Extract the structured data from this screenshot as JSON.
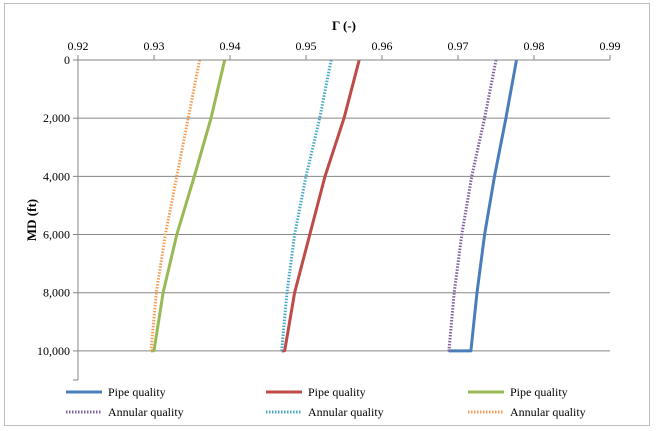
{
  "chart_data": {
    "type": "line",
    "xlabel": "Γ (-)",
    "ylabel": "MD (ft)",
    "xlim": [
      0.92,
      0.99
    ],
    "ylim": [
      0,
      11000
    ],
    "y_inverted": true,
    "x_axis_position": "top",
    "grid": "horizontal",
    "legend_position": "bottom",
    "x_ticks": [
      0.92,
      0.93,
      0.94,
      0.95,
      0.96,
      0.97,
      0.98,
      0.99
    ],
    "y_ticks": [
      0,
      2000,
      4000,
      6000,
      8000,
      10000
    ],
    "x_tick_labels": [
      "0.92",
      "0.93",
      "0.94",
      "0.95",
      "0.96",
      "0.97",
      "0.98",
      "0.99"
    ],
    "y_tick_labels": [
      "0",
      "2,000",
      "4,000",
      "6,000",
      "8,000",
      "10,000"
    ],
    "series": [
      {
        "name": "Pipe quality",
        "color": "#4a7ebb",
        "style": "solid",
        "x": [
          0.9777,
          0.9763,
          0.9748,
          0.9735,
          0.9725,
          0.9717,
          0.9717,
          0.9688
        ],
        "y": [
          0,
          2000,
          4000,
          6000,
          8000,
          9990,
          10000,
          10000
        ]
      },
      {
        "name": "Pipe quality",
        "color": "#be4b48",
        "style": "solid",
        "x": [
          0.957,
          0.955,
          0.9525,
          0.9505,
          0.9485,
          0.9472,
          0.947,
          0.9468
        ],
        "y": [
          0,
          2000,
          4000,
          6000,
          8000,
          9990,
          10000,
          10000
        ]
      },
      {
        "name": "Pipe quality",
        "color": "#98b954",
        "style": "solid",
        "x": [
          0.9393,
          0.9375,
          0.9353,
          0.933,
          0.9312,
          0.93,
          0.9297,
          0.9296
        ],
        "y": [
          0,
          2000,
          4000,
          6000,
          8000,
          9990,
          10000,
          10000
        ]
      },
      {
        "name": "Annular quality",
        "color": "#7d60a0",
        "style": "dotted",
        "x": [
          0.975,
          0.9735,
          0.9718,
          0.9705,
          0.9695,
          0.9688,
          0.9687
        ],
        "y": [
          0,
          2000,
          4000,
          6000,
          8000,
          9990,
          10000
        ]
      },
      {
        "name": "Annular quality",
        "color": "#46aac5",
        "style": "dotted",
        "x": [
          0.9533,
          0.9518,
          0.95,
          0.9485,
          0.9475,
          0.9468,
          0.9468
        ],
        "y": [
          0,
          2000,
          4000,
          6000,
          8000,
          9990,
          10000
        ]
      },
      {
        "name": "Annular quality",
        "color": "#f59d56",
        "style": "dotted",
        "x": [
          0.936,
          0.9345,
          0.933,
          0.9315,
          0.9303,
          0.9296,
          0.9296
        ],
        "y": [
          0,
          2000,
          4000,
          6000,
          8000,
          9990,
          10000
        ]
      }
    ]
  }
}
